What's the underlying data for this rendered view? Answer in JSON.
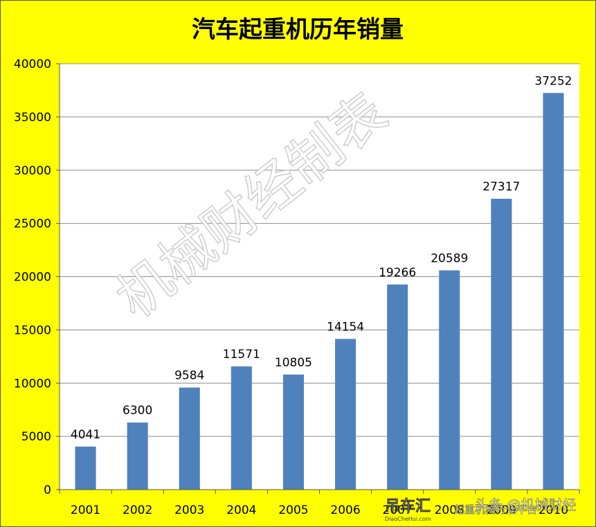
{
  "chart_data": {
    "type": "bar",
    "title": "汽车起重机历年销量",
    "categories": [
      "2001",
      "2002",
      "2003",
      "2004",
      "2005",
      "2006",
      "2007",
      "2008",
      "2009",
      "2010"
    ],
    "values": [
      4041,
      6300,
      9584,
      11571,
      10805,
      14154,
      19266,
      20589,
      27317,
      37252
    ],
    "ylim": [
      0,
      40000
    ],
    "yticks": [
      0,
      5000,
      10000,
      15000,
      20000,
      25000,
      30000,
      35000,
      40000
    ],
    "xlabel": "",
    "ylabel": "",
    "grid": true,
    "legend": "none",
    "bar_color": "#4f81bd",
    "background_color": "#ffff00"
  },
  "watermark": {
    "text": "机械财经制表"
  },
  "footer": {
    "brand": "吊车汇",
    "brand_url": "DiaoCheHui.com",
    "platform": "起重机械行业平台",
    "source": "头条 @机械财经"
  }
}
